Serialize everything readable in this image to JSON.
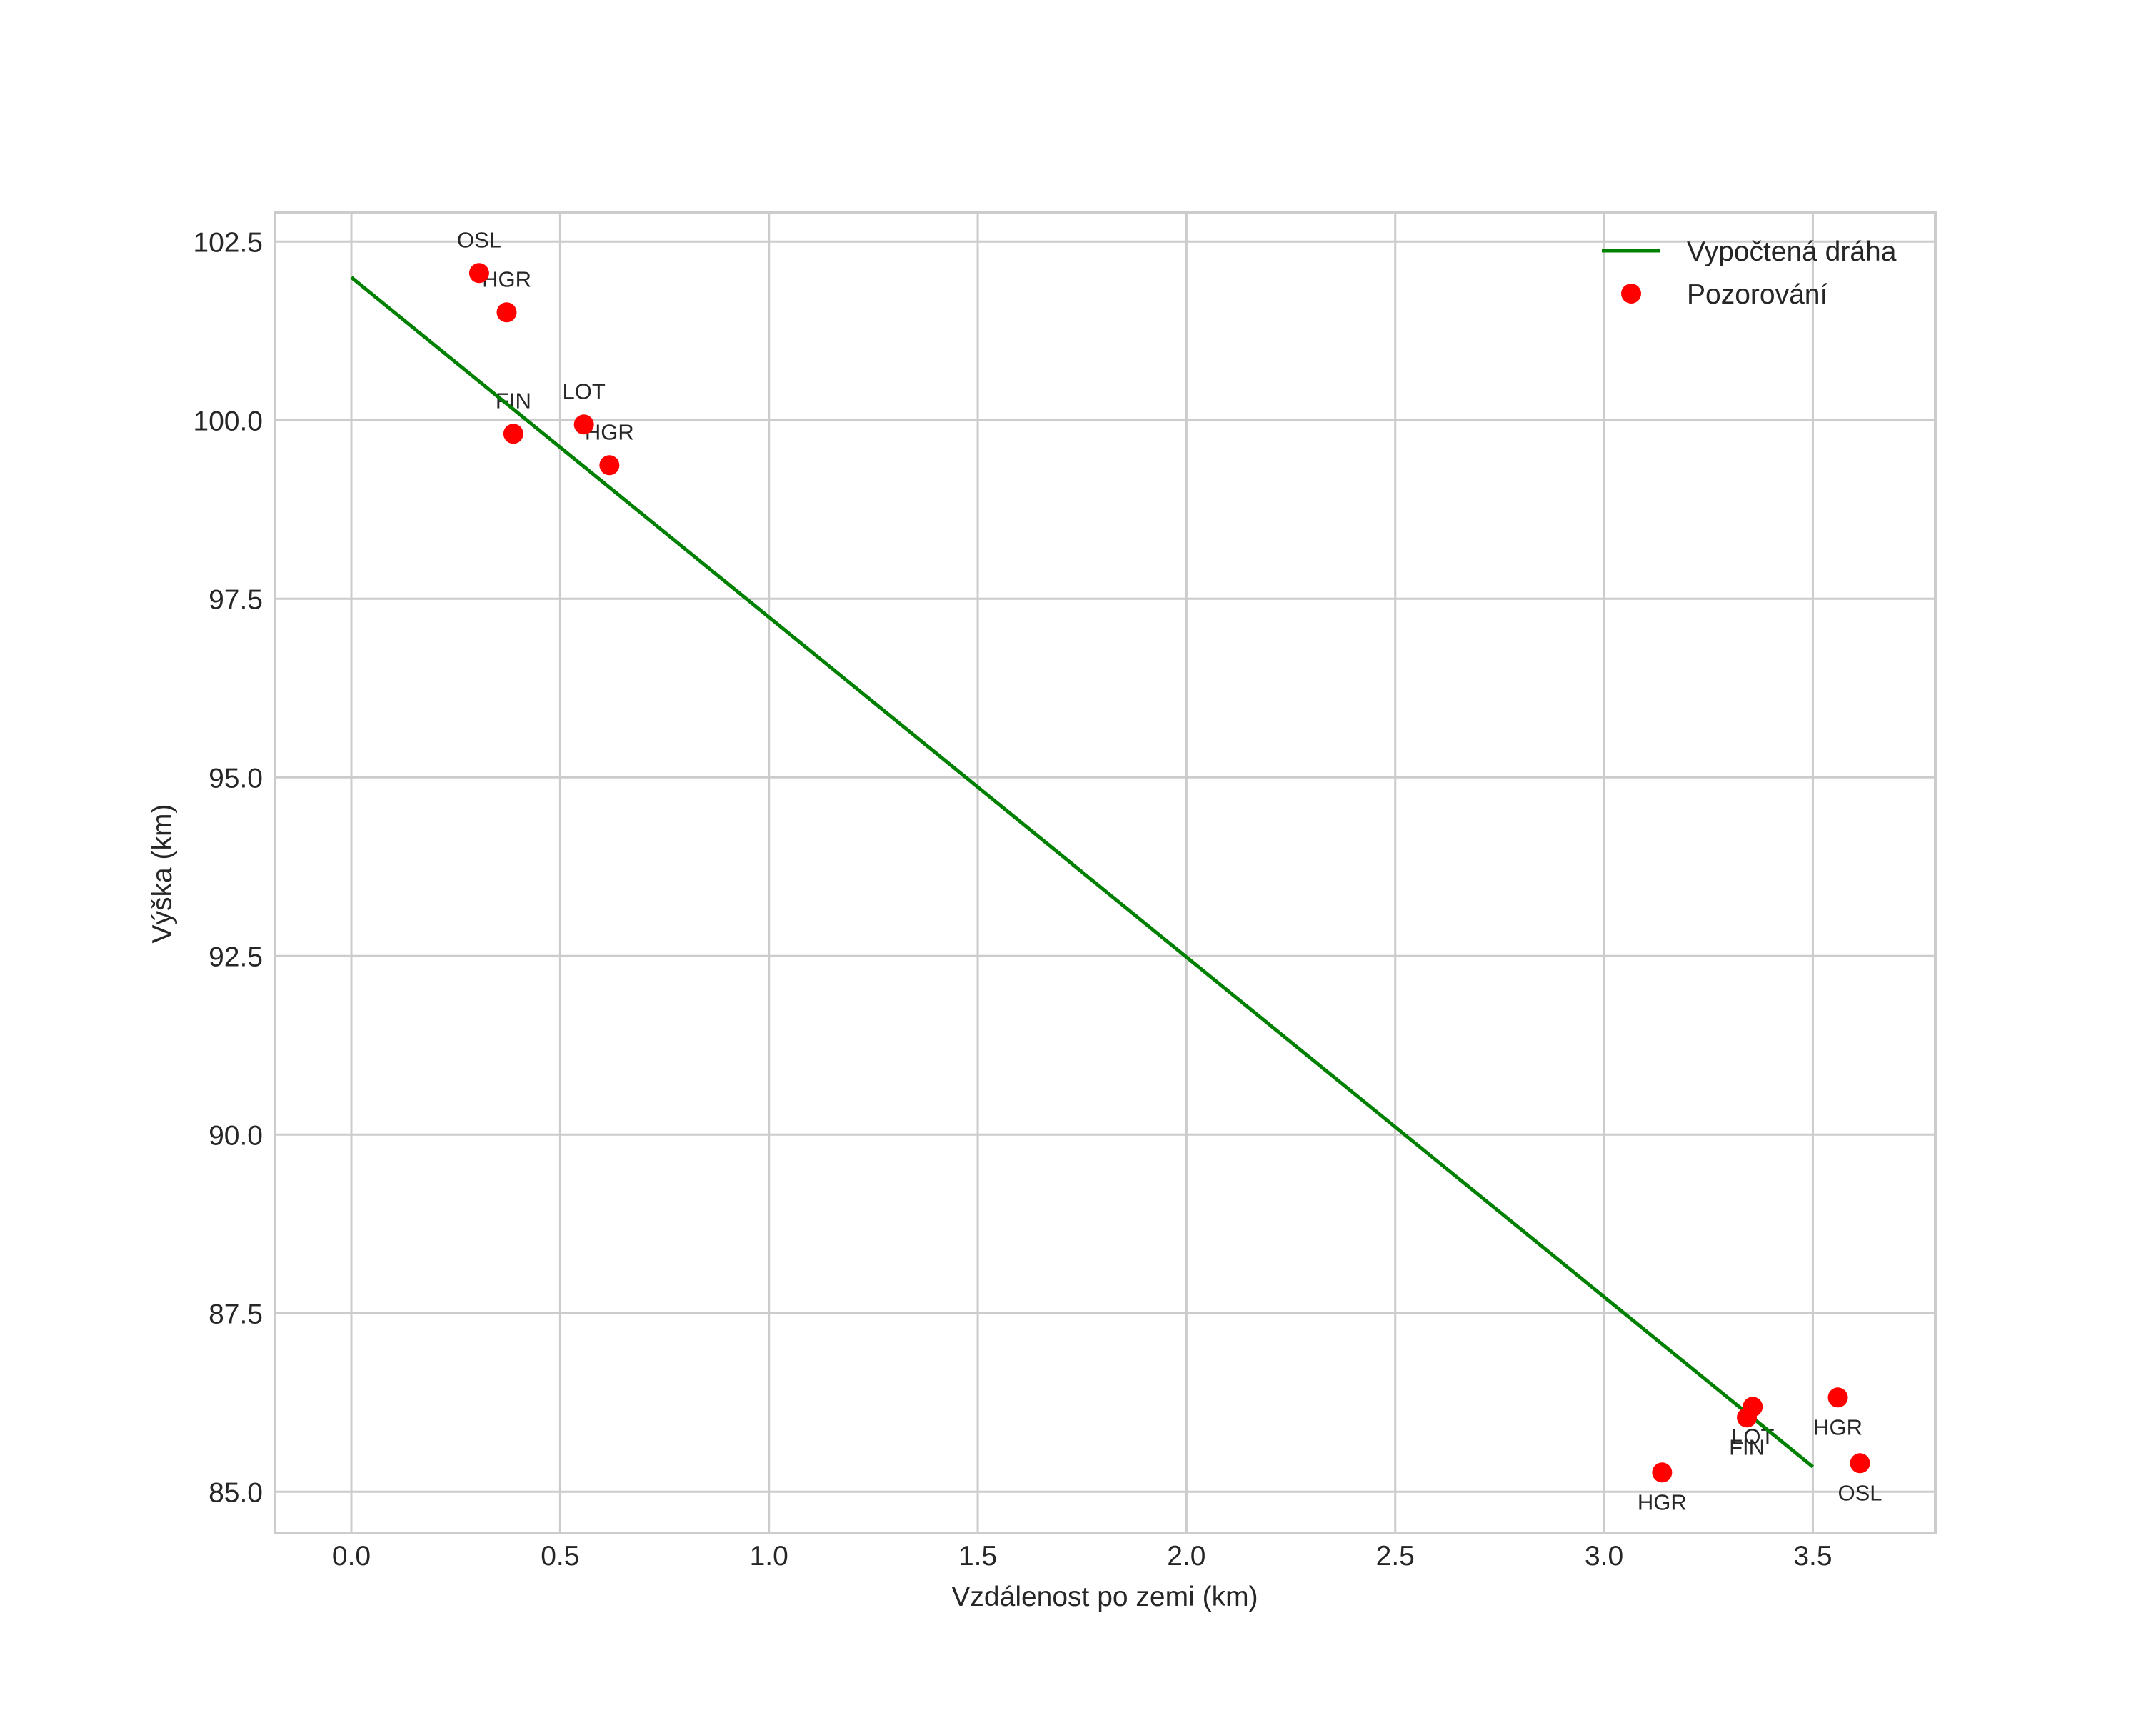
{
  "chart_data": {
    "type": "line+scatter",
    "title": "",
    "xlabel": "Vzdálenost po zemi (km)",
    "ylabel": "Výška (km)",
    "xlim": [
      -0.18,
      3.8
    ],
    "ylim": [
      84.43,
      102.93
    ],
    "grid": true,
    "legend_position": "upper right",
    "xticks": [
      0.0,
      0.5,
      1.0,
      1.5,
      2.0,
      2.5,
      3.0,
      3.5
    ],
    "xtick_labels": [
      "0.0",
      "0.5",
      "1.0",
      "1.5",
      "2.0",
      "2.5",
      "3.0",
      "3.5"
    ],
    "yticks": [
      85.0,
      87.5,
      90.0,
      92.5,
      95.0,
      97.5,
      100.0,
      102.5
    ],
    "ytick_labels": [
      "85.0",
      "87.5",
      "90.0",
      "92.5",
      "95.0",
      "97.5",
      "100.0",
      "102.5"
    ],
    "series": [
      {
        "name": "Vypočtená dráha",
        "type": "line",
        "color": "#008000",
        "x": [
          0.0,
          3.5
        ],
        "y": [
          102.0,
          85.35
        ]
      },
      {
        "name": "Pozorování",
        "type": "scatter",
        "color": "#ff0000",
        "points": [
          {
            "label": "OSL",
            "x": 0.306,
            "y": 102.06,
            "label_pos": "above"
          },
          {
            "label": "HGR",
            "x": 0.372,
            "y": 101.51,
            "label_pos": "above"
          },
          {
            "label": "FIN",
            "x": 0.388,
            "y": 99.81,
            "label_pos": "above"
          },
          {
            "label": "LOT",
            "x": 0.557,
            "y": 99.94,
            "label_pos": "above"
          },
          {
            "label": "HGR",
            "x": 0.618,
            "y": 99.37,
            "label_pos": "above"
          },
          {
            "label": "HGR",
            "x": 3.139,
            "y": 85.27,
            "label_pos": "below"
          },
          {
            "label": "LOT",
            "x": 3.356,
            "y": 86.19,
            "label_pos": "below"
          },
          {
            "label": "FIN",
            "x": 3.342,
            "y": 86.04,
            "label_pos": "below"
          },
          {
            "label": "HGR",
            "x": 3.56,
            "y": 86.32,
            "label_pos": "below"
          },
          {
            "label": "OSL",
            "x": 3.613,
            "y": 85.4,
            "label_pos": "below"
          }
        ]
      }
    ]
  },
  "legend": {
    "line_label": "Vypočtená dráha",
    "marker_label": "Pozorování"
  }
}
